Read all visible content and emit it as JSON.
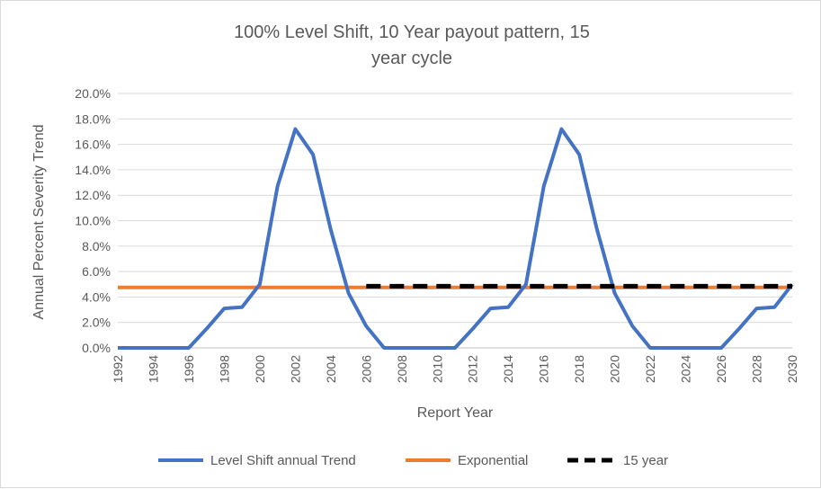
{
  "chart_data": {
    "type": "line",
    "title_line1": "100% Level Shift, 10 Year payout pattern, 15",
    "title_line2": "year cycle",
    "xlabel": "Report Year",
    "ylabel": "Annual Percent Severity Trend",
    "ylim": [
      0,
      0.2
    ],
    "xlim": [
      1992,
      2030
    ],
    "yticks": [
      "0.0%",
      "2.0%",
      "4.0%",
      "6.0%",
      "8.0%",
      "10.0%",
      "12.0%",
      "14.0%",
      "16.0%",
      "18.0%",
      "20.0%"
    ],
    "xticks": [
      "1992",
      "1994",
      "1996",
      "1998",
      "2000",
      "2002",
      "2004",
      "2006",
      "2008",
      "2010",
      "2012",
      "2014",
      "2016",
      "2018",
      "2020",
      "2022",
      "2024",
      "2026",
      "2028",
      "2030"
    ],
    "grid": true,
    "legend_position": "bottom",
    "series": [
      {
        "name": "Level Shift annual Trend",
        "color": "#4472C4",
        "style": "solid",
        "x": [
          1992,
          1993,
          1994,
          1995,
          1996,
          1997,
          1998,
          1999,
          2000,
          2001,
          2002,
          2003,
          2004,
          2005,
          2006,
          2007,
          2008,
          2009,
          2010,
          2011,
          2012,
          2013,
          2014,
          2015,
          2016,
          2017,
          2018,
          2019,
          2020,
          2021,
          2022,
          2023,
          2024,
          2025,
          2026,
          2027,
          2028,
          2029,
          2030
        ],
        "y": [
          0,
          0,
          0,
          0,
          0,
          0.015,
          0.031,
          0.032,
          0.05,
          0.127,
          0.172,
          0.152,
          0.093,
          0.043,
          0.017,
          0,
          0,
          0,
          0,
          0,
          0.015,
          0.031,
          0.032,
          0.05,
          0.127,
          0.172,
          0.152,
          0.093,
          0.043,
          0.017,
          0,
          0,
          0,
          0,
          0,
          0.015,
          0.031,
          0.032,
          0.05
        ]
      },
      {
        "name": "Exponential",
        "color": "#ED7D31",
        "style": "solid",
        "x": [
          1992,
          2030
        ],
        "y": [
          0.0475,
          0.0475
        ]
      },
      {
        "name": "15 year",
        "color": "#000000",
        "style": "dashed",
        "x": [
          2006,
          2030
        ],
        "y": [
          0.0485,
          0.0485
        ]
      }
    ]
  }
}
